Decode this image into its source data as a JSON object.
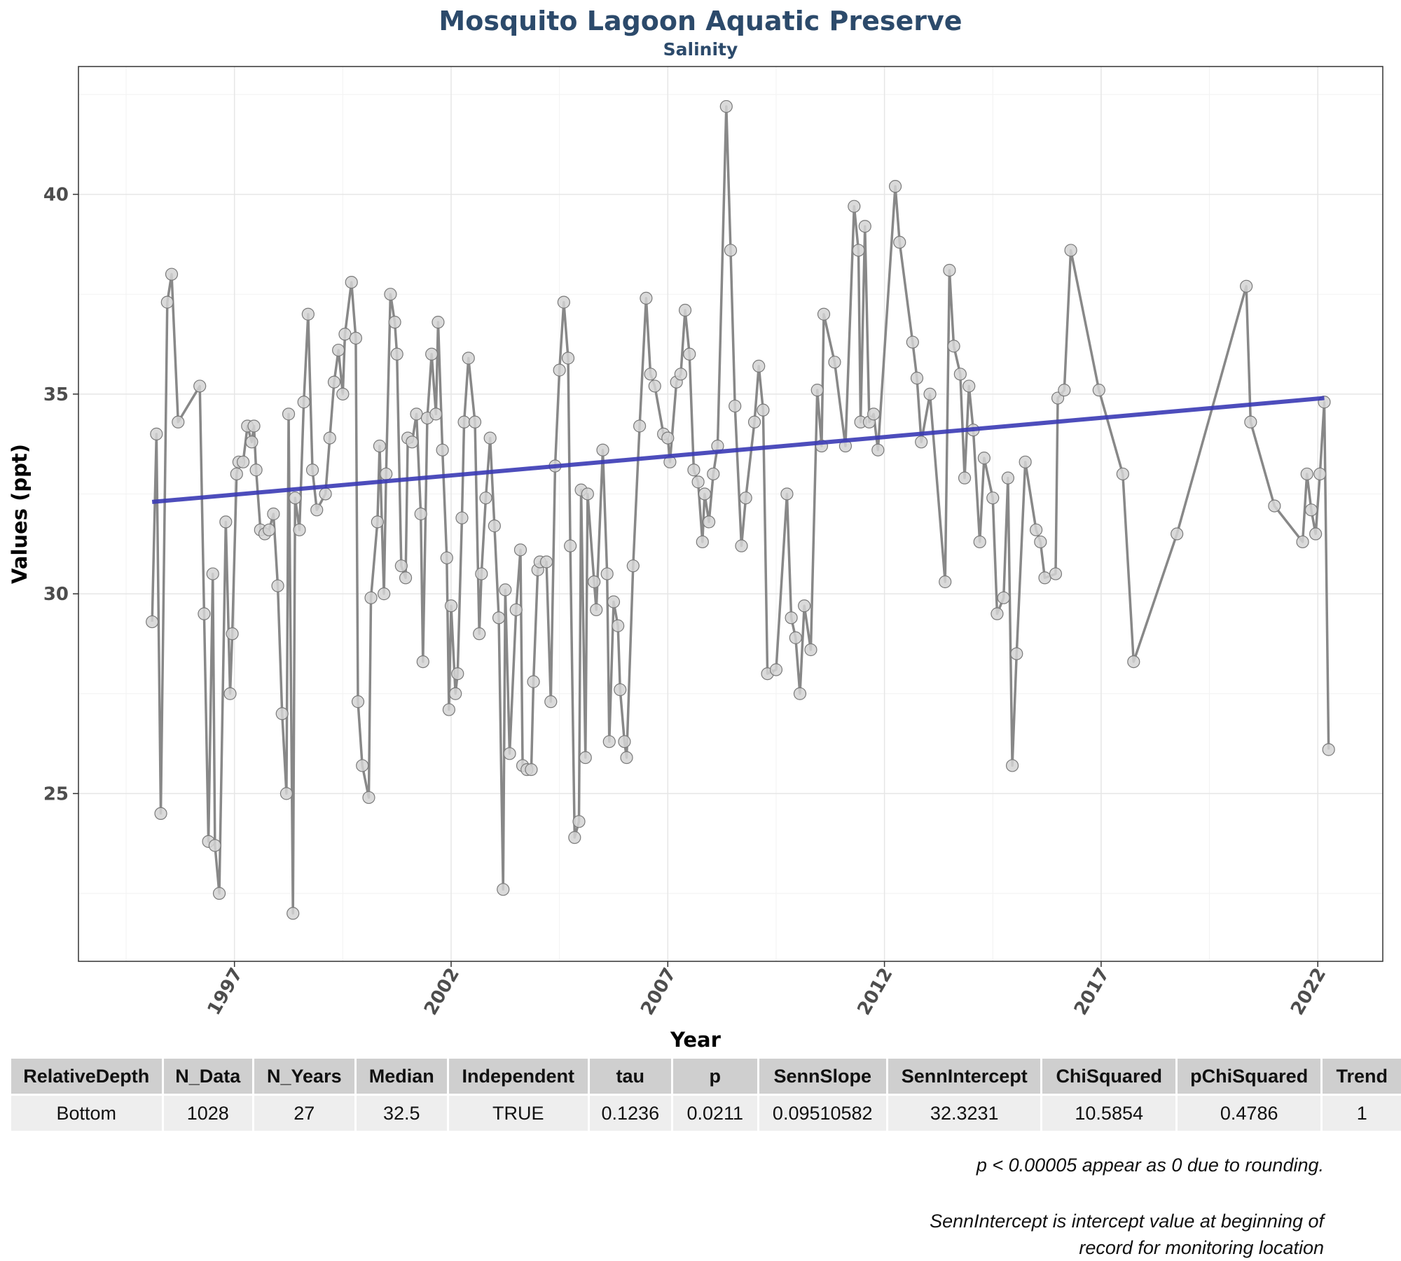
{
  "header": {
    "title": "Mosquito Lagoon Aquatic Preserve",
    "subtitle": "Salinity"
  },
  "chart_data": {
    "type": "line",
    "xlabel": "Year",
    "ylabel": "Values (ppt)",
    "x_ticks": [
      "1997",
      "2002",
      "2007",
      "2012",
      "2017",
      "2022"
    ],
    "y_ticks": [
      "25",
      "30",
      "35",
      "40"
    ],
    "xlim": [
      1993.4,
      2023.5
    ],
    "ylim": [
      20.8,
      43.2
    ],
    "grid": true,
    "line_color": "#888888",
    "point_fill": "#d3d3d3",
    "trend_color": "#3a3ab5",
    "series": [
      {
        "values": [
          [
            1995.1,
            29.3
          ],
          [
            1995.2,
            34.0
          ],
          [
            1995.3,
            24.5
          ],
          [
            1995.45,
            37.3
          ],
          [
            1995.55,
            38.0
          ],
          [
            1995.7,
            34.3
          ],
          [
            1996.2,
            35.2
          ],
          [
            1996.3,
            29.5
          ],
          [
            1996.4,
            23.8
          ],
          [
            1996.5,
            30.5
          ],
          [
            1996.55,
            23.7
          ],
          [
            1996.65,
            22.5
          ],
          [
            1996.8,
            31.8
          ],
          [
            1996.9,
            27.5
          ],
          [
            1996.95,
            29.0
          ],
          [
            1997.05,
            33.0
          ],
          [
            1997.1,
            33.3
          ],
          [
            1997.2,
            33.3
          ],
          [
            1997.3,
            34.2
          ],
          [
            1997.4,
            33.8
          ],
          [
            1997.45,
            34.2
          ],
          [
            1997.5,
            33.1
          ],
          [
            1997.6,
            31.6
          ],
          [
            1997.7,
            31.5
          ],
          [
            1997.8,
            31.6
          ],
          [
            1997.9,
            32.0
          ],
          [
            1998.0,
            30.2
          ],
          [
            1998.1,
            27.0
          ],
          [
            1998.2,
            25.0
          ],
          [
            1998.25,
            34.5
          ],
          [
            1998.35,
            22.0
          ],
          [
            1998.4,
            32.4
          ],
          [
            1998.5,
            31.6
          ],
          [
            1998.6,
            34.8
          ],
          [
            1998.7,
            37.0
          ],
          [
            1998.8,
            33.1
          ],
          [
            1998.9,
            32.1
          ],
          [
            1999.1,
            32.5
          ],
          [
            1999.2,
            33.9
          ],
          [
            1999.3,
            35.3
          ],
          [
            1999.4,
            36.1
          ],
          [
            1999.5,
            35.0
          ],
          [
            1999.55,
            36.5
          ],
          [
            1999.7,
            37.8
          ],
          [
            1999.8,
            36.4
          ],
          [
            1999.85,
            27.3
          ],
          [
            1999.95,
            25.7
          ],
          [
            2000.1,
            24.9
          ],
          [
            2000.15,
            29.9
          ],
          [
            2000.3,
            31.8
          ],
          [
            2000.35,
            33.7
          ],
          [
            2000.45,
            30.0
          ],
          [
            2000.5,
            33.0
          ],
          [
            2000.6,
            37.5
          ],
          [
            2000.7,
            36.8
          ],
          [
            2000.75,
            36.0
          ],
          [
            2000.85,
            30.7
          ],
          [
            2000.95,
            30.4
          ],
          [
            2001.0,
            33.9
          ],
          [
            2001.1,
            33.8
          ],
          [
            2001.2,
            34.5
          ],
          [
            2001.3,
            32.0
          ],
          [
            2001.35,
            28.3
          ],
          [
            2001.45,
            34.4
          ],
          [
            2001.55,
            36.0
          ],
          [
            2001.65,
            34.5
          ],
          [
            2001.7,
            36.8
          ],
          [
            2001.8,
            33.6
          ],
          [
            2001.9,
            30.9
          ],
          [
            2001.95,
            27.1
          ],
          [
            2002.0,
            29.7
          ],
          [
            2002.1,
            27.5
          ],
          [
            2002.15,
            28.0
          ],
          [
            2002.25,
            31.9
          ],
          [
            2002.3,
            34.3
          ],
          [
            2002.4,
            35.9
          ],
          [
            2002.55,
            34.3
          ],
          [
            2002.65,
            29.0
          ],
          [
            2002.7,
            30.5
          ],
          [
            2002.8,
            32.4
          ],
          [
            2002.9,
            33.9
          ],
          [
            2003.0,
            31.7
          ],
          [
            2003.1,
            29.4
          ],
          [
            2003.2,
            22.6
          ],
          [
            2003.25,
            30.1
          ],
          [
            2003.35,
            26.0
          ],
          [
            2003.5,
            29.6
          ],
          [
            2003.6,
            31.1
          ],
          [
            2003.65,
            25.7
          ],
          [
            2003.75,
            25.6
          ],
          [
            2003.85,
            25.6
          ],
          [
            2003.9,
            27.8
          ],
          [
            2004.0,
            30.6
          ],
          [
            2004.05,
            30.8
          ],
          [
            2004.2,
            30.8
          ],
          [
            2004.3,
            27.3
          ],
          [
            2004.4,
            33.2
          ],
          [
            2004.5,
            35.6
          ],
          [
            2004.6,
            37.3
          ],
          [
            2004.7,
            35.9
          ],
          [
            2004.75,
            31.2
          ],
          [
            2004.85,
            23.9
          ],
          [
            2004.95,
            24.3
          ],
          [
            2005.0,
            32.6
          ],
          [
            2005.1,
            25.9
          ],
          [
            2005.15,
            32.5
          ],
          [
            2005.3,
            30.3
          ],
          [
            2005.35,
            29.6
          ],
          [
            2005.5,
            33.6
          ],
          [
            2005.6,
            30.5
          ],
          [
            2005.65,
            26.3
          ],
          [
            2005.75,
            29.8
          ],
          [
            2005.85,
            29.2
          ],
          [
            2005.9,
            27.6
          ],
          [
            2006.0,
            26.3
          ],
          [
            2006.05,
            25.9
          ],
          [
            2006.2,
            30.7
          ],
          [
            2006.35,
            34.2
          ],
          [
            2006.5,
            37.4
          ],
          [
            2006.6,
            35.5
          ],
          [
            2006.7,
            35.2
          ],
          [
            2006.9,
            34.0
          ],
          [
            2007.0,
            33.9
          ],
          [
            2007.05,
            33.3
          ],
          [
            2007.2,
            35.3
          ],
          [
            2007.3,
            35.5
          ],
          [
            2007.4,
            37.1
          ],
          [
            2007.5,
            36.0
          ],
          [
            2007.6,
            33.1
          ],
          [
            2007.7,
            32.8
          ],
          [
            2007.8,
            31.3
          ],
          [
            2007.85,
            32.5
          ],
          [
            2007.95,
            31.8
          ],
          [
            2008.05,
            33.0
          ],
          [
            2008.15,
            33.7
          ],
          [
            2008.35,
            42.2
          ],
          [
            2008.45,
            38.6
          ],
          [
            2008.55,
            34.7
          ],
          [
            2008.7,
            31.2
          ],
          [
            2008.8,
            32.4
          ],
          [
            2009.0,
            34.3
          ],
          [
            2009.1,
            35.7
          ],
          [
            2009.2,
            34.6
          ],
          [
            2009.3,
            28.0
          ],
          [
            2009.5,
            28.1
          ],
          [
            2009.75,
            32.5
          ],
          [
            2009.85,
            29.4
          ],
          [
            2009.95,
            28.9
          ],
          [
            2010.05,
            27.5
          ],
          [
            2010.15,
            29.7
          ],
          [
            2010.3,
            28.6
          ],
          [
            2010.45,
            35.1
          ],
          [
            2010.55,
            33.7
          ],
          [
            2010.6,
            37.0
          ],
          [
            2010.85,
            35.8
          ],
          [
            2011.1,
            33.7
          ],
          [
            2011.3,
            39.7
          ],
          [
            2011.4,
            38.6
          ],
          [
            2011.45,
            34.3
          ],
          [
            2011.55,
            39.2
          ],
          [
            2011.65,
            34.3
          ],
          [
            2011.75,
            34.5
          ],
          [
            2011.85,
            33.6
          ],
          [
            2012.25,
            40.2
          ],
          [
            2012.35,
            38.8
          ],
          [
            2012.65,
            36.3
          ],
          [
            2012.75,
            35.4
          ],
          [
            2012.85,
            33.8
          ],
          [
            2013.05,
            35.0
          ],
          [
            2013.4,
            30.3
          ],
          [
            2013.5,
            38.1
          ],
          [
            2013.6,
            36.2
          ],
          [
            2013.75,
            35.5
          ],
          [
            2013.85,
            32.9
          ],
          [
            2013.95,
            35.2
          ],
          [
            2014.05,
            34.1
          ],
          [
            2014.2,
            31.3
          ],
          [
            2014.3,
            33.4
          ],
          [
            2014.5,
            32.4
          ],
          [
            2014.6,
            29.5
          ],
          [
            2014.75,
            29.9
          ],
          [
            2014.85,
            32.9
          ],
          [
            2014.95,
            25.7
          ],
          [
            2015.05,
            28.5
          ],
          [
            2015.25,
            33.3
          ],
          [
            2015.5,
            31.6
          ],
          [
            2015.6,
            31.3
          ],
          [
            2015.7,
            30.4
          ],
          [
            2015.95,
            30.5
          ],
          [
            2016.0,
            34.9
          ],
          [
            2016.15,
            35.1
          ],
          [
            2016.3,
            38.6
          ],
          [
            2016.95,
            35.1
          ],
          [
            2017.5,
            33.0
          ],
          [
            2017.75,
            28.3
          ],
          [
            2018.75,
            31.5
          ],
          [
            2020.35,
            37.7
          ],
          [
            2020.45,
            34.3
          ],
          [
            2021.0,
            32.2
          ],
          [
            2021.65,
            31.3
          ],
          [
            2021.75,
            33.0
          ],
          [
            2021.85,
            32.1
          ],
          [
            2021.95,
            31.5
          ],
          [
            2022.05,
            33.0
          ],
          [
            2022.15,
            34.8
          ],
          [
            2022.25,
            26.1
          ]
        ]
      }
    ],
    "trend": {
      "x": [
        1995.1,
        2022.15
      ],
      "y": [
        32.3,
        34.9
      ]
    }
  },
  "stats_table": {
    "headers": [
      "RelativeDepth",
      "N_Data",
      "N_Years",
      "Median",
      "Independent",
      "tau",
      "p",
      "SennSlope",
      "SennIntercept",
      "ChiSquared",
      "pChiSquared",
      "Trend"
    ],
    "row": [
      "Bottom",
      "1028",
      "27",
      "32.5",
      "TRUE",
      "0.1236",
      "0.0211",
      "0.09510582",
      "32.3231",
      "10.5854",
      "0.4786",
      "1"
    ]
  },
  "notes": {
    "rounding": "p < 0.00005 appear as 0 due to rounding.",
    "intercept_line1": "SennIntercept is intercept value at beginning of",
    "intercept_line2": "record for monitoring location"
  }
}
